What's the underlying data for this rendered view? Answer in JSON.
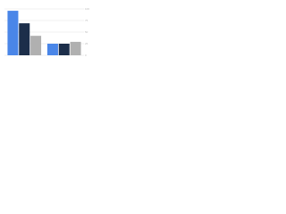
{
  "chart_data": {
    "type": "bar",
    "categories": [
      null,
      null
    ],
    "series": [
      {
        "color": "#4a86e8",
        "values": [
          96,
          25
        ]
      },
      {
        "color": "#1c2e4a",
        "values": [
          69,
          25
        ]
      },
      {
        "color": "#b0b0b0",
        "values": [
          42,
          29
        ]
      }
    ],
    "ylim": [
      0,
      100
    ],
    "yticks": [
      0,
      25,
      50,
      75,
      100
    ],
    "grid": true
  }
}
